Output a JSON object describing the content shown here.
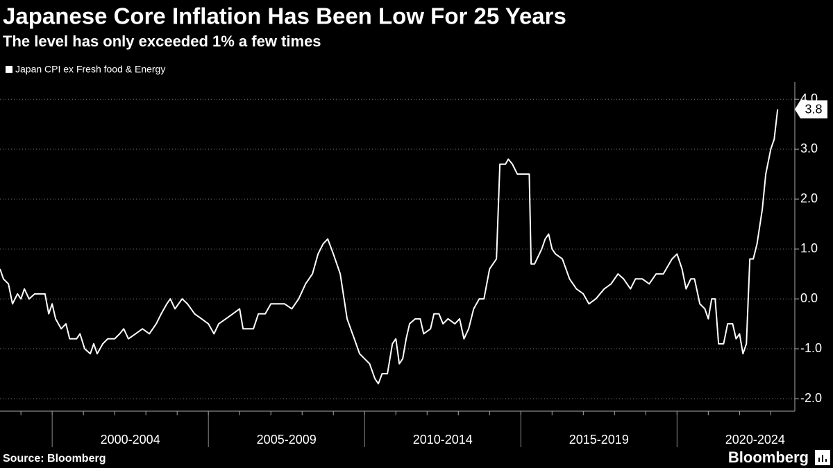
{
  "chart_data": {
    "type": "line",
    "title": "Japanese Core Inflation Has Been Low For 25 Years",
    "subtitle": "The level has only exceeded 1% a few times",
    "source": "Source: Bloomberg",
    "brand": "Bloomberg",
    "x": [
      1998.33,
      1998.44,
      1998.6,
      1998.73,
      1998.89,
      1999.0,
      1999.11,
      1999.26,
      1999.44,
      1999.77,
      1999.89,
      2000.0,
      2000.11,
      2000.29,
      2000.44,
      2000.56,
      2000.78,
      2000.89,
      2001.04,
      2001.22,
      2001.33,
      2001.44,
      2001.62,
      2001.78,
      2002.0,
      2002.16,
      2002.29,
      2002.44,
      2002.67,
      2002.89,
      2003.11,
      2003.33,
      2003.49,
      2003.67,
      2003.78,
      2003.93,
      2004.16,
      2004.33,
      2004.56,
      2004.78,
      2005.0,
      2005.18,
      2005.33,
      2005.56,
      2005.78,
      2006.0,
      2006.11,
      2006.44,
      2006.6,
      2006.82,
      2007.0,
      2007.22,
      2007.44,
      2007.67,
      2007.89,
      2008.11,
      2008.33,
      2008.51,
      2008.67,
      2008.82,
      2009.0,
      2009.22,
      2009.44,
      2009.67,
      2009.84,
      2010.0,
      2010.16,
      2010.33,
      2010.44,
      2010.56,
      2010.73,
      2010.89,
      2011.0,
      2011.11,
      2011.22,
      2011.33,
      2011.44,
      2011.62,
      2011.78,
      2011.89,
      2012.11,
      2012.22,
      2012.38,
      2012.51,
      2012.67,
      2012.89,
      2013.04,
      2013.18,
      2013.33,
      2013.49,
      2013.67,
      2013.82,
      2014.0,
      2014.11,
      2014.22,
      2014.33,
      2014.51,
      2014.6,
      2014.73,
      2014.89,
      2015.27,
      2015.33,
      2015.44,
      2015.67,
      2015.78,
      2015.89,
      2016.0,
      2016.11,
      2016.33,
      2016.56,
      2016.78,
      2017.0,
      2017.18,
      2017.4,
      2017.67,
      2017.89,
      2018.11,
      2018.29,
      2018.51,
      2018.67,
      2018.89,
      2019.11,
      2019.33,
      2019.56,
      2019.84,
      2020.0,
      2020.16,
      2020.29,
      2020.44,
      2020.56,
      2020.73,
      2020.89,
      2021.0,
      2021.11,
      2021.22,
      2021.33,
      2021.49,
      2021.62,
      2021.78,
      2021.89,
      2022.0,
      2022.11,
      2022.22,
      2022.33,
      2022.44,
      2022.56,
      2022.73,
      2022.84,
      2023.0,
      2023.11,
      2023.22
    ],
    "series": [
      {
        "name": "Japan CPI ex Fresh food & Energy",
        "color": "#ffffff",
        "values": [
          0.6,
          0.4,
          0.3,
          -0.1,
          0.1,
          0.0,
          0.2,
          0.0,
          0.1,
          0.1,
          -0.3,
          -0.1,
          -0.4,
          -0.6,
          -0.5,
          -0.8,
          -0.8,
          -0.7,
          -1.0,
          -1.1,
          -0.9,
          -1.1,
          -0.9,
          -0.8,
          -0.8,
          -0.7,
          -0.6,
          -0.8,
          -0.7,
          -0.6,
          -0.7,
          -0.5,
          -0.3,
          -0.1,
          0.0,
          -0.2,
          0.0,
          -0.1,
          -0.3,
          -0.4,
          -0.5,
          -0.7,
          -0.5,
          -0.4,
          -0.3,
          -0.2,
          -0.6,
          -0.6,
          -0.3,
          -0.3,
          -0.1,
          -0.1,
          -0.1,
          -0.2,
          0.0,
          0.3,
          0.5,
          0.9,
          1.1,
          1.2,
          0.9,
          0.5,
          -0.4,
          -0.8,
          -1.1,
          -1.2,
          -1.3,
          -1.6,
          -1.7,
          -1.5,
          -1.5,
          -0.9,
          -0.8,
          -1.3,
          -1.2,
          -0.8,
          -0.5,
          -0.4,
          -0.4,
          -0.7,
          -0.6,
          -0.3,
          -0.3,
          -0.5,
          -0.4,
          -0.5,
          -0.4,
          -0.8,
          -0.6,
          -0.2,
          0.0,
          0.0,
          0.6,
          0.7,
          0.8,
          2.7,
          2.7,
          2.8,
          2.7,
          2.5,
          2.5,
          0.7,
          0.7,
          1.0,
          1.2,
          1.3,
          1.0,
          0.9,
          0.8,
          0.4,
          0.2,
          0.1,
          -0.1,
          0.0,
          0.2,
          0.3,
          0.5,
          0.4,
          0.2,
          0.4,
          0.4,
          0.3,
          0.5,
          0.5,
          0.8,
          0.9,
          0.6,
          0.2,
          0.4,
          0.4,
          -0.1,
          -0.2,
          -0.4,
          0.0,
          0.0,
          -0.9,
          -0.9,
          -0.5,
          -0.5,
          -0.8,
          -0.7,
          -1.1,
          -0.9,
          0.8,
          0.8,
          1.1,
          1.8,
          2.5,
          3.0,
          3.2,
          3.8
        ]
      }
    ],
    "xlim": [
      1998.33,
      2023.77
    ],
    "xticks": [
      {
        "value": 2000,
        "label": "2000-2004"
      },
      {
        "value": 2005,
        "label": "2005-2009"
      },
      {
        "value": 2010,
        "label": "2010-2014"
      },
      {
        "value": 2015,
        "label": "2015-2019"
      },
      {
        "value": 2020,
        "label": "2020-2024"
      }
    ],
    "ylim": [
      -2.25,
      4.35
    ],
    "yticks": [
      {
        "value": -2,
        "label": "-2.0"
      },
      {
        "value": -1,
        "label": "-1.0"
      },
      {
        "value": 0,
        "label": "0.0"
      },
      {
        "value": 1,
        "label": "1.0"
      },
      {
        "value": 2,
        "label": "2.0"
      },
      {
        "value": 3,
        "label": "3.0"
      },
      {
        "value": 4,
        "label": "4.0"
      }
    ],
    "grid": true,
    "legend": "top-left"
  }
}
